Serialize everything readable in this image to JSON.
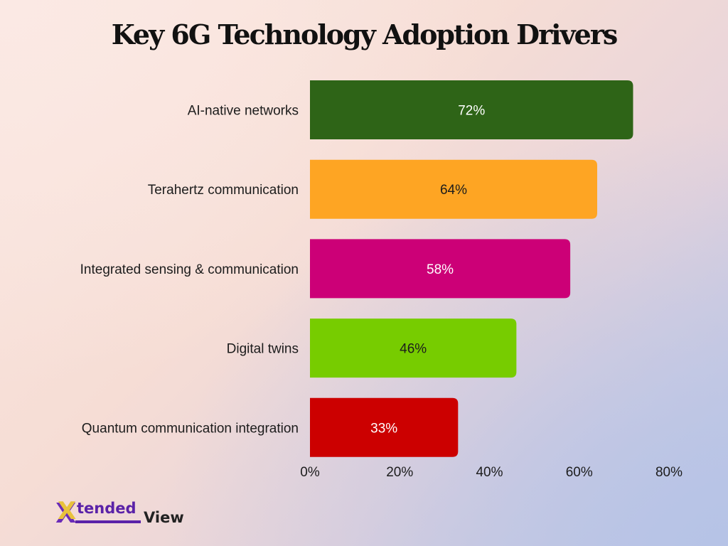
{
  "chart_data": {
    "type": "bar",
    "orientation": "horizontal",
    "title": "Key 6G Technology Adoption Drivers",
    "categories": [
      "AI-native networks",
      "Terahertz communication",
      "Integrated sensing & communication",
      "Digital twins",
      "Quantum communication integration"
    ],
    "values": [
      72,
      64,
      58,
      46,
      33
    ],
    "data_labels": [
      "72%",
      "64%",
      "58%",
      "46%",
      "33%"
    ],
    "colors": [
      "#2e6417",
      "#fea523",
      "#cc0077",
      "#77cc00",
      "#cc0000"
    ],
    "label_colors": [
      "#ffffff",
      "#1c1c1c",
      "#ffffff",
      "#1c1c1c",
      "#ffffff"
    ],
    "xlim": [
      0,
      80
    ],
    "x_ticks": [
      0,
      20,
      40,
      60,
      80
    ],
    "x_tick_labels": [
      "0%",
      "20%",
      "40%",
      "60%",
      "80%"
    ],
    "xlabel": "",
    "ylabel": "",
    "grid": false,
    "legend": "none"
  },
  "brand": {
    "logo_mark": "X",
    "logo_word_1": "tended",
    "logo_word_2": "View",
    "logo_color": "#5a22a8",
    "logo_accent": "#e8c23c"
  }
}
